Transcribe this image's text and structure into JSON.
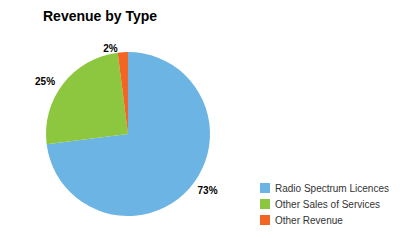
{
  "chart_data": {
    "type": "pie",
    "title": "Revenue by Type",
    "categories": [
      "Radio Spectrum Licences",
      "Other Sales of Services",
      "Other Revenue"
    ],
    "values": [
      73,
      25,
      2
    ],
    "value_labels": [
      "73%",
      "25%",
      "2%"
    ],
    "colors": [
      "#6cb4e4",
      "#8dc63f",
      "#f26522"
    ],
    "data_labels": true,
    "legend": "bottom-right"
  }
}
